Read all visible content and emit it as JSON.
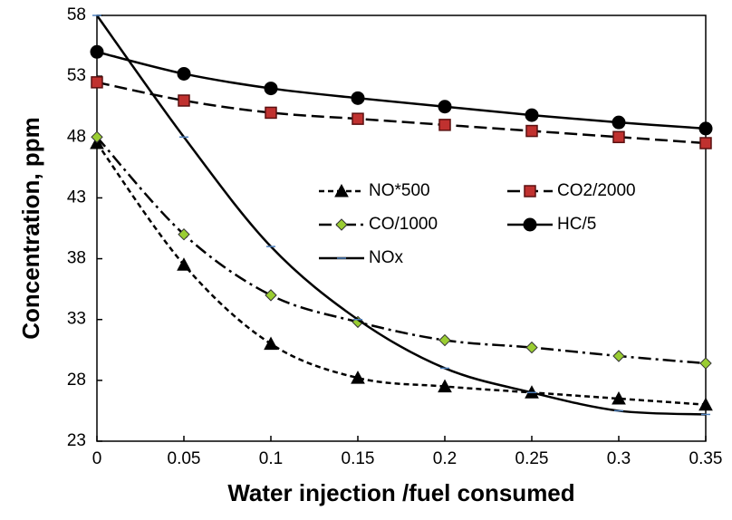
{
  "chart_data": {
    "type": "line",
    "x_label": "Water injection /fuel consumed",
    "y_label": "Concentration, ppm",
    "x": [
      0,
      0.05,
      0.1,
      0.15,
      0.2,
      0.25,
      0.3,
      0.35
    ],
    "xlim": [
      0,
      0.35
    ],
    "xticks": [
      0,
      0.05,
      0.1,
      0.15,
      0.2,
      0.25,
      0.3,
      0.35
    ],
    "ylim": [
      23,
      58
    ],
    "yticks": [
      23,
      28,
      33,
      38,
      43,
      48,
      53,
      58
    ],
    "legend": "center",
    "series": [
      {
        "name": "NO*500",
        "color": "#000000",
        "marker": "triangle",
        "marker_fill": "#000000",
        "dash": "short",
        "values": [
          47.5,
          37.5,
          31,
          28.2,
          27.5,
          27,
          26.5,
          26
        ]
      },
      {
        "name": "CO2/2000",
        "color": "#000000",
        "marker": "square",
        "marker_fill": "#c0312f",
        "dash": "long",
        "values": [
          52.5,
          51,
          50,
          49.5,
          49,
          48.5,
          48,
          47.5
        ]
      },
      {
        "name": "CO/1000",
        "color": "#000000",
        "marker": "diamond",
        "marker_fill": "#9acd32",
        "dash": "dashdot",
        "values": [
          48,
          40,
          35,
          32.8,
          31.3,
          30.7,
          30,
          29.4
        ]
      },
      {
        "name": "HC/5",
        "color": "#000000",
        "marker": "circle",
        "marker_fill": "#000000",
        "dash": "solid",
        "values": [
          55,
          53.2,
          52,
          51.2,
          50.5,
          49.8,
          49.2,
          48.7
        ]
      },
      {
        "name": "NOx",
        "color": "#000000",
        "marker": "dash",
        "marker_fill": "#4f81bd",
        "dash": "solid",
        "values": [
          58,
          48,
          39,
          33,
          29,
          27,
          25.5,
          25.2
        ]
      }
    ]
  }
}
